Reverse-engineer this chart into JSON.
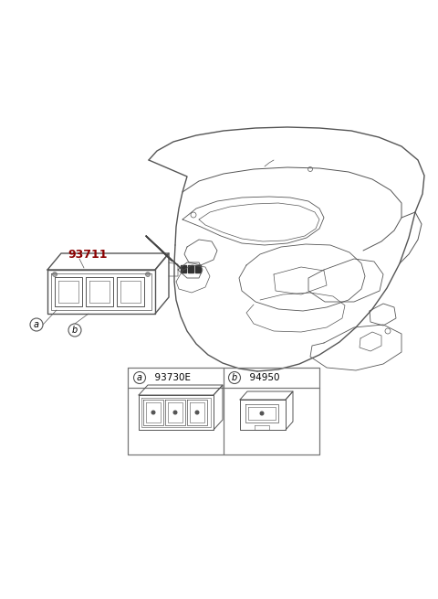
{
  "bg_color": "#ffffff",
  "part_number_main": "93711",
  "label_a": "a",
  "label_b": "b",
  "table_part_a": "93730E",
  "table_part_b": "94950",
  "line_color": "#555555",
  "text_color_part": "#8B0000",
  "text_color_labels": "#000000",
  "border_color": "#777777",
  "fig_width": 4.8,
  "fig_height": 6.55,
  "dpi": 100
}
